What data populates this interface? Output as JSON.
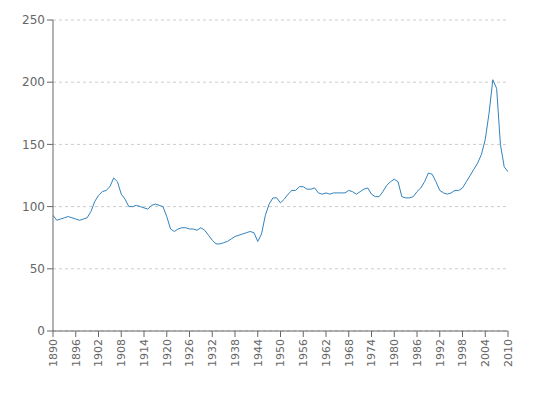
{
  "chart_data": {
    "type": "line",
    "x": [
      1890,
      1891,
      1892,
      1893,
      1894,
      1895,
      1896,
      1897,
      1898,
      1899,
      1900,
      1901,
      1902,
      1903,
      1904,
      1905,
      1906,
      1907,
      1908,
      1909,
      1910,
      1911,
      1912,
      1913,
      1914,
      1915,
      1916,
      1917,
      1918,
      1919,
      1920,
      1921,
      1922,
      1923,
      1924,
      1925,
      1926,
      1927,
      1928,
      1929,
      1930,
      1931,
      1932,
      1933,
      1934,
      1935,
      1936,
      1937,
      1938,
      1939,
      1940,
      1941,
      1942,
      1943,
      1944,
      1945,
      1946,
      1947,
      1948,
      1949,
      1950,
      1951,
      1952,
      1953,
      1954,
      1955,
      1956,
      1957,
      1958,
      1959,
      1960,
      1961,
      1962,
      1963,
      1964,
      1965,
      1966,
      1967,
      1968,
      1969,
      1970,
      1971,
      1972,
      1973,
      1974,
      1975,
      1976,
      1977,
      1978,
      1979,
      1980,
      1981,
      1982,
      1983,
      1984,
      1985,
      1986,
      1987,
      1988,
      1989,
      1990,
      1991,
      1992,
      1993,
      1994,
      1995,
      1996,
      1997,
      1998,
      1999,
      2000,
      2001,
      2002,
      2003,
      2004,
      2005,
      2006,
      2007,
      2008,
      2009,
      2010
    ],
    "values": [
      93,
      89,
      90,
      91,
      92,
      91,
      90,
      89,
      90,
      91,
      96,
      104,
      109,
      112,
      113,
      116,
      123,
      120,
      110,
      106,
      100,
      100,
      101,
      100,
      99,
      98,
      101,
      102,
      101,
      100,
      92,
      82,
      80,
      82,
      83,
      83,
      82,
      82,
      81,
      83,
      81,
      77,
      73,
      70,
      70,
      71,
      72,
      74,
      76,
      77,
      78,
      79,
      80,
      79,
      72,
      78,
      93,
      102,
      107,
      107,
      103,
      106,
      110,
      113,
      113,
      116,
      116,
      114,
      114,
      115,
      111,
      110,
      111,
      110,
      111,
      111,
      111,
      111,
      113,
      112,
      110,
      112,
      114,
      115,
      110,
      108,
      108,
      112,
      117,
      120,
      122,
      120,
      108,
      107,
      107,
      108,
      112,
      115,
      120,
      127,
      126,
      120,
      113,
      111,
      110,
      111,
      113,
      113,
      115,
      120,
      125,
      130,
      135,
      142,
      154,
      175,
      202,
      195,
      150,
      132,
      128
    ],
    "xlim": [
      1890,
      2010
    ],
    "ylim": [
      0,
      250
    ],
    "xticks": [
      1890,
      1896,
      1902,
      1908,
      1914,
      1920,
      1926,
      1932,
      1938,
      1944,
      1950,
      1956,
      1962,
      1968,
      1974,
      1980,
      1986,
      1992,
      1998,
      2004,
      2010
    ],
    "yticks": [
      0,
      50,
      100,
      150,
      200,
      250
    ],
    "grid": true
  }
}
